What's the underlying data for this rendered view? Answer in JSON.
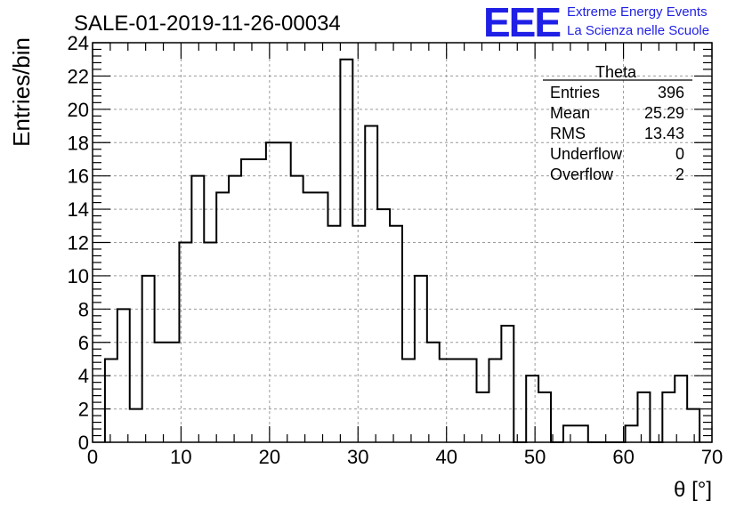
{
  "title": "SALE-01-2019-11-26-00034",
  "logo": {
    "text": "EEE",
    "line1": "Extreme Energy Events",
    "line2": "La Scienza nelle Scuole"
  },
  "colors": {
    "logo": "#1f1fe6",
    "line": "#000000",
    "grid": "#9a9a9a",
    "background": "#ffffff"
  },
  "stats": {
    "title": "Theta",
    "rows": [
      {
        "label": "Entries",
        "value": "396"
      },
      {
        "label": "Mean",
        "value": "25.29"
      },
      {
        "label": "RMS",
        "value": "13.43"
      },
      {
        "label": "Underflow",
        "value": "0"
      },
      {
        "label": "Overflow",
        "value": "2"
      }
    ]
  },
  "chart_data": {
    "type": "histogram",
    "xlabel": "θ [°]",
    "ylabel": "Entries/bin",
    "xlim": [
      0,
      70
    ],
    "ylim": [
      0,
      24
    ],
    "xticks": [
      0,
      10,
      20,
      30,
      40,
      50,
      60,
      70
    ],
    "yticks": [
      0,
      2,
      4,
      6,
      8,
      10,
      12,
      14,
      16,
      18,
      20,
      22,
      24
    ],
    "grid": true,
    "bin_width": 1.4,
    "x_start": 1.4,
    "values": [
      5,
      8,
      2,
      10,
      6,
      6,
      12,
      16,
      12,
      15,
      16,
      17,
      17,
      18,
      18,
      16,
      15,
      15,
      13,
      23,
      13,
      19,
      14,
      13,
      5,
      10,
      6,
      5,
      5,
      5,
      3,
      5,
      7,
      0,
      4,
      3,
      0,
      1,
      1,
      0,
      0,
      0,
      1,
      3,
      0,
      3,
      4,
      2
    ]
  }
}
